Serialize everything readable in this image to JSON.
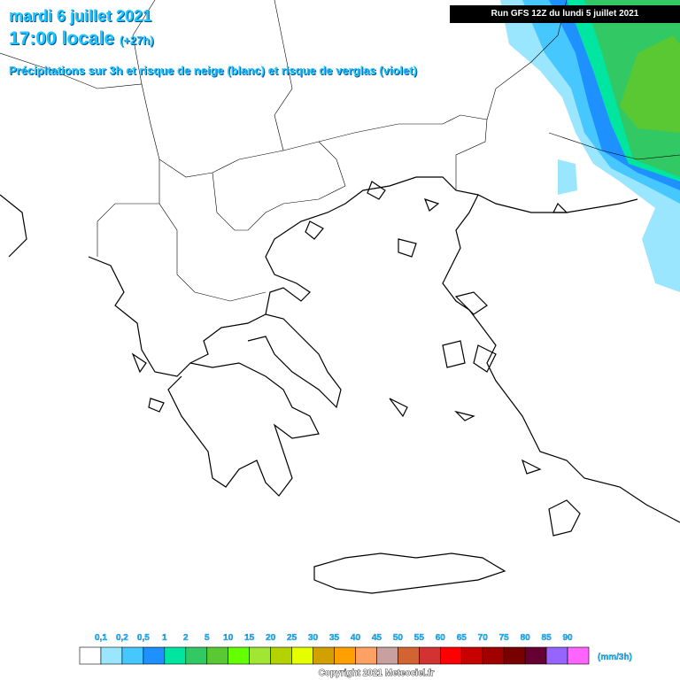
{
  "header": {
    "date": "mardi 6 juillet 2021",
    "time": "17:00 locale",
    "offset": "(+27h)",
    "subtitle": "Précipitations sur 3h et risque de neige (blanc) et risque de verglas (violet)"
  },
  "run": "Run GFS 12Z du lundi 5 juillet 2021",
  "legend": {
    "labels": [
      "0,1",
      "0,2",
      "0,5",
      "1",
      "2",
      "5",
      "10",
      "15",
      "20",
      "25",
      "30",
      "35",
      "40",
      "45",
      "50",
      "55",
      "60",
      "65",
      "70",
      "75",
      "80",
      "85",
      "90"
    ],
    "colors": [
      "#ffffff",
      "#9be6ff",
      "#46c8ff",
      "#1e90ff",
      "#00e6a0",
      "#32c864",
      "#5ac832",
      "#64ff00",
      "#a0e632",
      "#b4d200",
      "#e6ff00",
      "#d2a000",
      "#ffa000",
      "#ffa064",
      "#c8a0a0",
      "#d26432",
      "#d23232",
      "#ff0000",
      "#c80000",
      "#a00000",
      "#780000",
      "#640032",
      "#9664ff",
      "#ff64ff"
    ],
    "unit": "(mm/3h)"
  },
  "copyright": "Copyright 2021 Meteociel.fr"
}
